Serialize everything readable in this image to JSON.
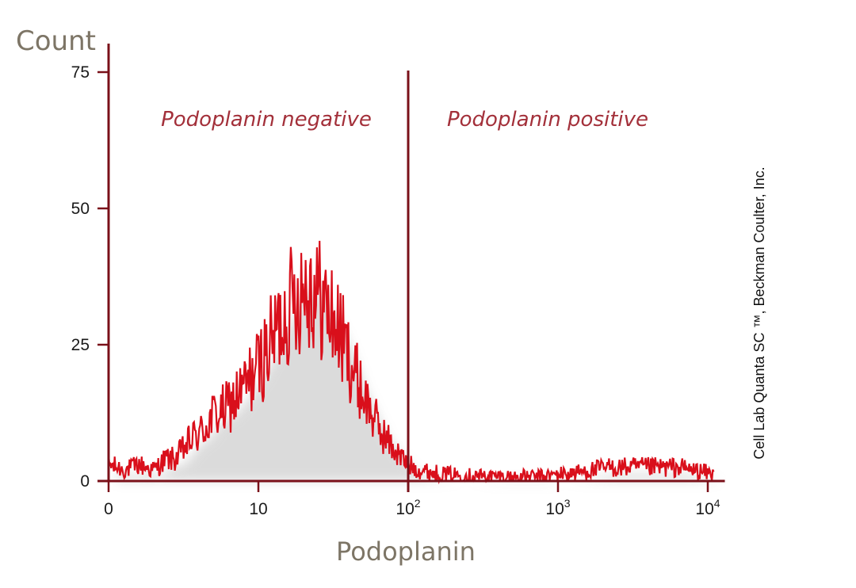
{
  "chart_data": {
    "type": "area",
    "ylabel": "Count",
    "xlabel": "Podoplanin",
    "x_scale": "log",
    "ylim": [
      0,
      75
    ],
    "y_ticks": [
      {
        "value": 0,
        "label": "0"
      },
      {
        "value": 25,
        "label": "25"
      },
      {
        "value": 50,
        "label": "50"
      },
      {
        "value": 75,
        "label": "75"
      }
    ],
    "x_ticks": [
      {
        "value": 1,
        "base": "0",
        "exp": ""
      },
      {
        "value": 10,
        "base": "10",
        "exp": ""
      },
      {
        "value": 100,
        "base": "10",
        "exp": "2"
      },
      {
        "value": 1000,
        "base": "10",
        "exp": "3"
      },
      {
        "value": 10000,
        "base": "10",
        "exp": "4"
      }
    ],
    "gate": {
      "x": 100
    },
    "regions": [
      {
        "label": "Podoplanin negative"
      },
      {
        "label": "Podoplanin positive"
      }
    ],
    "series": [
      {
        "color": "#d90f1b",
        "points": [
          [
            1.0,
            3
          ],
          [
            1.3,
            2
          ],
          [
            1.6,
            3
          ],
          [
            2.0,
            2
          ],
          [
            2.4,
            4
          ],
          [
            2.8,
            4
          ],
          [
            3.2,
            6
          ],
          [
            3.7,
            8
          ],
          [
            4.2,
            9
          ],
          [
            5.0,
            12
          ],
          [
            6.0,
            13
          ],
          [
            7.0,
            15
          ],
          [
            8.0,
            17
          ],
          [
            9.0,
            19
          ],
          [
            10.0,
            21
          ],
          [
            12.0,
            25
          ],
          [
            14.0,
            29
          ],
          [
            16.0,
            32
          ],
          [
            18.0,
            34
          ],
          [
            20.0,
            36
          ],
          [
            22.0,
            36
          ],
          [
            25.0,
            34
          ],
          [
            28.0,
            32
          ],
          [
            31.0,
            30
          ],
          [
            35.0,
            27
          ],
          [
            40.0,
            23
          ],
          [
            45.0,
            19
          ],
          [
            50.0,
            16
          ],
          [
            58.0,
            12
          ],
          [
            66.0,
            9
          ],
          [
            75.0,
            7
          ],
          [
            85.0,
            5
          ],
          [
            100.0,
            3
          ],
          [
            120.0,
            2
          ],
          [
            150.0,
            1.5
          ],
          [
            200.0,
            1.2
          ],
          [
            280.0,
            1
          ],
          [
            400.0,
            0.8
          ],
          [
            560.0,
            0.8
          ],
          [
            750.0,
            0.8
          ],
          [
            1000.0,
            1.2
          ],
          [
            1300.0,
            1.5
          ],
          [
            1700.0,
            2
          ],
          [
            2200.0,
            2.5
          ],
          [
            3000.0,
            2.5
          ],
          [
            4000.0,
            2.5
          ],
          [
            5000.0,
            2.5
          ],
          [
            6500.0,
            2.5
          ],
          [
            8000.0,
            2
          ],
          [
            10000.0,
            1.5
          ],
          [
            11000.0,
            1
          ]
        ]
      }
    ],
    "annotations": [
      "Cell Lab Quanta SC ™, Beckman Coulter, Inc."
    ]
  }
}
